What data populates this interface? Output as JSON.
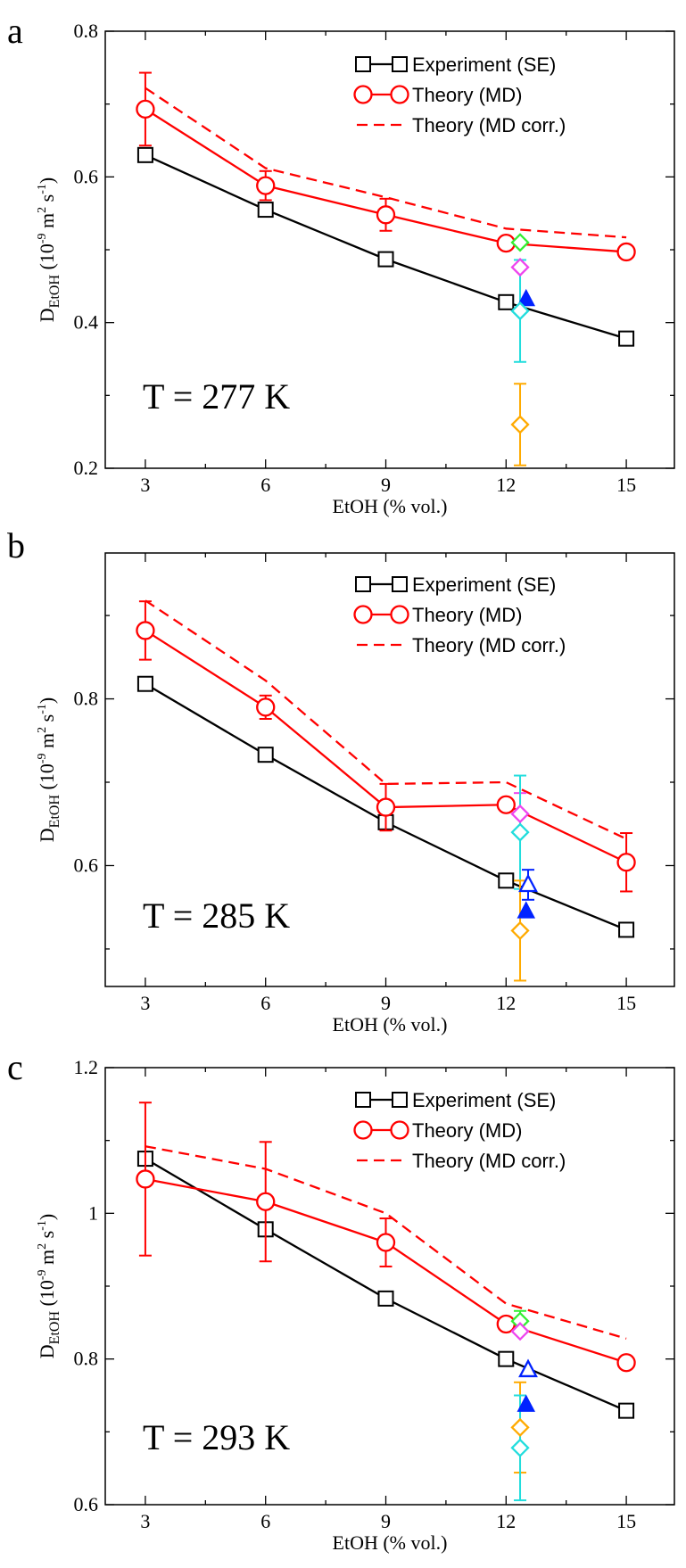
{
  "chart_data": [
    {
      "type": "line",
      "panel": "a",
      "annotation": "T = 277 K",
      "xlabel": "EtOH (% vol.)",
      "ylabel": {
        "main": "D",
        "sub": "EtOH",
        "units_pre": " (10",
        "sup1": "-9",
        "units_mid": " m",
        "sup2": "2",
        "units_s": "s",
        "sup3": "-1",
        "units_post": ")"
      },
      "xlim": [
        2,
        16.2
      ],
      "ylim": [
        0.2,
        0.8
      ],
      "xticks": [
        3,
        6,
        9,
        12,
        15
      ],
      "xtick_labels": [
        "3",
        "6",
        "9",
        "12",
        "15"
      ],
      "yticks": [
        0.2,
        0.4,
        0.6,
        0.8
      ],
      "ytick_labels": [
        "0.2",
        "0.4",
        "0.6",
        "0.8"
      ],
      "legend": [
        "Experiment (SE)",
        "Theory (MD)",
        "Theory (MD corr.)"
      ],
      "legend_position": "top-right",
      "series": [
        {
          "name": "Experiment (SE)",
          "color": "#000000",
          "marker": "square",
          "x": [
            3,
            6,
            9,
            12,
            15
          ],
          "y": [
            0.63,
            0.555,
            0.487,
            0.428,
            0.378
          ]
        },
        {
          "name": "Theory (MD)",
          "color": "#ff0000",
          "marker": "circle",
          "x": [
            3,
            6,
            9,
            12,
            15
          ],
          "y": [
            0.693,
            0.588,
            0.548,
            0.509,
            0.497
          ],
          "err": [
            0.05,
            0.02,
            0.022,
            0.006,
            0.006
          ]
        },
        {
          "name": "Theory (MD corr.)",
          "color": "#ff0000",
          "marker": "none",
          "dashed": true,
          "x": [
            3,
            6,
            9,
            12,
            15
          ],
          "y": [
            0.722,
            0.612,
            0.572,
            0.529,
            0.517
          ]
        }
      ],
      "extra_points": [
        {
          "x": 12.35,
          "y": 0.51,
          "marker": "diamond",
          "color": "#33ee33",
          "err": 0
        },
        {
          "x": 12.35,
          "y": 0.476,
          "marker": "diamond",
          "color": "#ee44ee",
          "err": 0
        },
        {
          "x": 12.5,
          "y": 0.432,
          "marker": "triangle-filled",
          "color": "#0022ff",
          "err": 0
        },
        {
          "x": 12.35,
          "y": 0.416,
          "marker": "diamond",
          "color": "#22dddd",
          "err": 0.07
        },
        {
          "x": 12.35,
          "y": 0.26,
          "marker": "diamond",
          "color": "#ffaa00",
          "err": 0.056
        }
      ]
    },
    {
      "type": "line",
      "panel": "b",
      "annotation": "T = 285 K",
      "xlabel": "EtOH (% vol.)",
      "ylabel": {
        "main": "D",
        "sub": "EtOH",
        "units_pre": " (10",
        "sup1": "-9",
        "units_mid": " m",
        "sup2": "2",
        "units_s": "s",
        "sup3": "-1",
        "units_post": ")"
      },
      "xlim": [
        2,
        16.2
      ],
      "ylim": [
        0.455,
        0.975
      ],
      "xticks": [
        3,
        6,
        9,
        12,
        15
      ],
      "xtick_labels": [
        "3",
        "6",
        "9",
        "12",
        "15"
      ],
      "yticks": [
        0.6,
        0.8
      ],
      "ytick_labels": [
        "0.6",
        "0.8"
      ],
      "legend": [
        "Experiment (SE)",
        "Theory (MD)",
        "Theory (MD corr.)"
      ],
      "legend_position": "top-right",
      "series": [
        {
          "name": "Experiment (SE)",
          "color": "#000000",
          "marker": "square",
          "x": [
            3,
            6,
            9,
            12,
            15
          ],
          "y": [
            0.818,
            0.733,
            0.652,
            0.582,
            0.523
          ]
        },
        {
          "name": "Theory (MD)",
          "color": "#ff0000",
          "marker": "circle",
          "x": [
            3,
            6,
            9,
            12,
            15
          ],
          "y": [
            0.882,
            0.79,
            0.67,
            0.673,
            0.604
          ],
          "err": [
            0.035,
            0.014,
            0.028,
            0.007,
            0.035
          ]
        },
        {
          "name": "Theory (MD corr.)",
          "color": "#ff0000",
          "marker": "none",
          "dashed": true,
          "x": [
            3,
            6,
            9,
            12,
            15
          ],
          "y": [
            0.918,
            0.822,
            0.698,
            0.7,
            0.632
          ]
        }
      ],
      "extra_points": [
        {
          "x": 12.35,
          "y": 0.662,
          "marker": "diamond",
          "color": "#ee44ee",
          "err": 0.025
        },
        {
          "x": 12.35,
          "y": 0.64,
          "marker": "diamond",
          "color": "#22dddd",
          "err": 0.068
        },
        {
          "x": 12.55,
          "y": 0.577,
          "marker": "triangle-open",
          "color": "#0022ff",
          "err": 0.018
        },
        {
          "x": 12.5,
          "y": 0.545,
          "marker": "triangle-filled",
          "color": "#0022ff",
          "err": 0
        },
        {
          "x": 12.35,
          "y": 0.522,
          "marker": "diamond",
          "color": "#ffaa00",
          "err": 0.06
        }
      ]
    },
    {
      "type": "line",
      "panel": "c",
      "annotation": "T = 293 K",
      "xlabel": "EtOH (% vol.)",
      "ylabel": {
        "main": "D",
        "sub": "EtOH",
        "units_pre": " (10",
        "sup1": "-9",
        "units_mid": " m",
        "sup2": "2",
        "units_s": "s",
        "sup3": "-1",
        "units_post": ")"
      },
      "xlim": [
        2,
        16.2
      ],
      "ylim": [
        0.6,
        1.2
      ],
      "xticks": [
        3,
        6,
        9,
        12,
        15
      ],
      "xtick_labels": [
        "3",
        "6",
        "9",
        "12",
        "15"
      ],
      "yticks": [
        0.6,
        0.8,
        1.0,
        1.2
      ],
      "ytick_labels": [
        "0.6",
        "0.8",
        "1",
        "1.2"
      ],
      "legend": [
        "Experiment (SE)",
        "Theory (MD)",
        "Theory (MD corr.)"
      ],
      "legend_position": "top-right",
      "series": [
        {
          "name": "Experiment (SE)",
          "color": "#000000",
          "marker": "square",
          "x": [
            3,
            6,
            9,
            12,
            15
          ],
          "y": [
            1.075,
            0.978,
            0.883,
            0.8,
            0.729
          ]
        },
        {
          "name": "Theory (MD)",
          "color": "#ff0000",
          "marker": "circle",
          "x": [
            3,
            6,
            9,
            12,
            15
          ],
          "y": [
            1.047,
            1.016,
            0.96,
            0.848,
            0.795
          ],
          "err": [
            0.105,
            0.082,
            0.033,
            0.008,
            0.006
          ]
        },
        {
          "name": "Theory (MD corr.)",
          "color": "#ff0000",
          "marker": "none",
          "dashed": true,
          "x": [
            3,
            6,
            9,
            12,
            15
          ],
          "y": [
            1.092,
            1.061,
            1.0,
            0.876,
            0.828
          ]
        }
      ],
      "extra_points": [
        {
          "x": 12.35,
          "y": 0.852,
          "marker": "diamond",
          "color": "#33ee33",
          "err": 0.014
        },
        {
          "x": 12.35,
          "y": 0.838,
          "marker": "diamond",
          "color": "#ee44ee",
          "err": 0
        },
        {
          "x": 12.55,
          "y": 0.785,
          "marker": "triangle-open",
          "color": "#0022ff",
          "err": 0
        },
        {
          "x": 12.5,
          "y": 0.737,
          "marker": "triangle-filled",
          "color": "#0022ff",
          "err": 0
        },
        {
          "x": 12.35,
          "y": 0.706,
          "marker": "diamond",
          "color": "#ffaa00",
          "err": 0.062
        },
        {
          "x": 12.35,
          "y": 0.678,
          "marker": "diamond",
          "color": "#22dddd",
          "err": 0.072
        }
      ]
    }
  ]
}
